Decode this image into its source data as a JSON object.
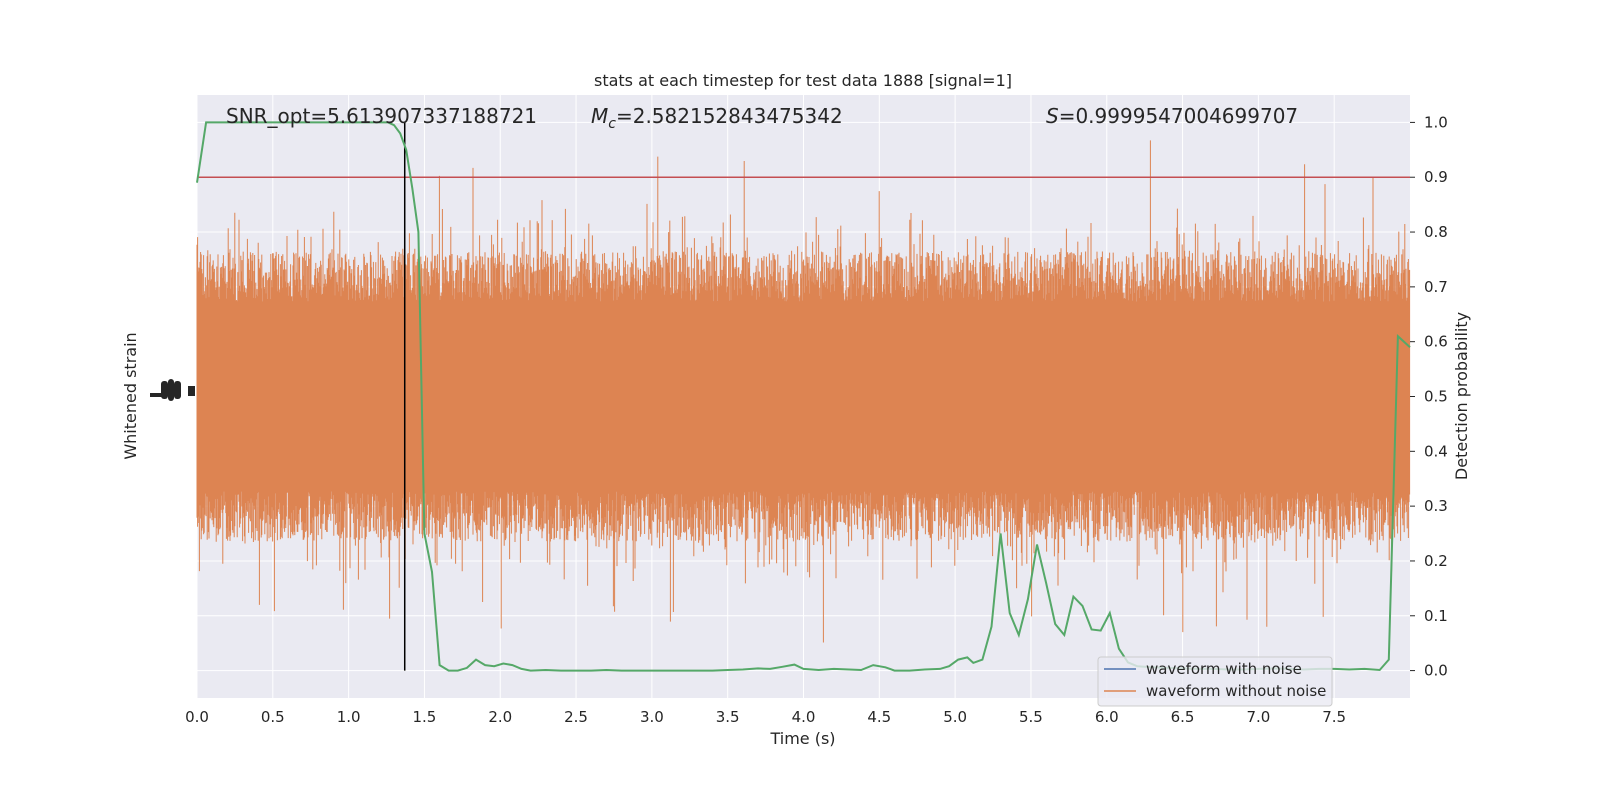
{
  "chart_data": {
    "type": "line",
    "title": "stats at each timestep for test data 1888 [signal=1]",
    "xlabel": "Time (s)",
    "ylabel_left": "Whitened strain",
    "ylabel_right": "Detection probability",
    "xlim": [
      0.0,
      8.0
    ],
    "ylim_right": [
      -0.05,
      1.05
    ],
    "x_ticks": [
      "0.0",
      "0.5",
      "1.0",
      "1.5",
      "2.0",
      "2.5",
      "3.0",
      "3.5",
      "4.0",
      "4.5",
      "5.0",
      "5.5",
      "6.0",
      "6.5",
      "7.0",
      "7.5"
    ],
    "y_ticks_right": [
      "0.0",
      "0.1",
      "0.2",
      "0.3",
      "0.4",
      "0.5",
      "0.6",
      "0.7",
      "0.8",
      "0.9",
      "1.0"
    ],
    "annotations": {
      "snr": "SNR_opt=5.613907337188721",
      "mc_symbol": "M",
      "mc_sub": "c",
      "mc_value": "=2.582152843475342",
      "s_symbol": "S",
      "s_value": "=0.9999547004699707"
    },
    "threshold": 0.9,
    "vline_x": 1.37,
    "legend_position": "lower-right",
    "series": [
      {
        "name": "waveform with noise",
        "color": "#4c72b0"
      },
      {
        "name": "waveform without noise",
        "color": "#dd8452"
      },
      {
        "color": "#55a868",
        "x": [
          0.0,
          0.06,
          0.12,
          0.18,
          0.24,
          0.3,
          0.36,
          0.42,
          0.48,
          0.54,
          0.6,
          0.66,
          0.72,
          0.78,
          0.84,
          0.9,
          0.96,
          1.02,
          1.08,
          1.14,
          1.2,
          1.26,
          1.3,
          1.34,
          1.38,
          1.42,
          1.46,
          1.5,
          1.55,
          1.6,
          1.66,
          1.72,
          1.78,
          1.84,
          1.9,
          1.96,
          2.02,
          2.08,
          2.14,
          2.2,
          2.3,
          2.4,
          2.5,
          2.6,
          2.7,
          2.8,
          2.9,
          3.0,
          3.1,
          3.2,
          3.3,
          3.4,
          3.5,
          3.6,
          3.7,
          3.78,
          3.86,
          3.94,
          4.0,
          4.1,
          4.2,
          4.3,
          4.38,
          4.46,
          4.54,
          4.6,
          4.7,
          4.8,
          4.9,
          4.96,
          5.02,
          5.08,
          5.12,
          5.18,
          5.24,
          5.3,
          5.36,
          5.42,
          5.48,
          5.54,
          5.6,
          5.66,
          5.72,
          5.78,
          5.84,
          5.9,
          5.96,
          6.02,
          6.08,
          6.14,
          6.2,
          6.3,
          6.4,
          6.5,
          6.6,
          6.7,
          6.8,
          6.9,
          7.0,
          7.1,
          7.2,
          7.3,
          7.4,
          7.5,
          7.6,
          7.7,
          7.8,
          7.86,
          7.92,
          8.0
        ],
        "y": [
          0.89,
          1.0,
          1.0,
          1.0,
          1.0,
          1.0,
          1.0,
          1.0,
          1.0,
          1.0,
          1.0,
          1.0,
          1.0,
          1.0,
          1.0,
          1.0,
          1.0,
          1.0,
          1.0,
          1.0,
          1.0,
          1.0,
          0.995,
          0.98,
          0.95,
          0.88,
          0.8,
          0.25,
          0.18,
          0.01,
          0.0,
          0.0,
          0.005,
          0.02,
          0.01,
          0.008,
          0.013,
          0.01,
          0.003,
          0.0,
          0.001,
          0.0,
          0.0,
          0.0,
          0.001,
          0.0,
          0.0,
          0.0,
          0.0,
          0.0,
          0.0,
          0.0,
          0.001,
          0.002,
          0.004,
          0.003,
          0.007,
          0.011,
          0.003,
          0.001,
          0.003,
          0.002,
          0.001,
          0.01,
          0.006,
          0.0,
          0.0,
          0.002,
          0.003,
          0.008,
          0.02,
          0.024,
          0.014,
          0.02,
          0.08,
          0.25,
          0.105,
          0.065,
          0.13,
          0.23,
          0.16,
          0.085,
          0.065,
          0.135,
          0.118,
          0.075,
          0.073,
          0.105,
          0.04,
          0.015,
          0.008,
          0.006,
          0.005,
          0.004,
          0.003,
          0.003,
          0.002,
          0.002,
          0.003,
          0.004,
          0.003,
          0.002,
          0.003,
          0.003,
          0.002,
          0.003,
          0.001,
          0.02,
          0.61,
          0.59
        ]
      },
      {
        "color": "#c44e52"
      }
    ]
  },
  "colors": {
    "plot_bg": "#eaeaf2",
    "grid": "#ffffff",
    "text": "#262626"
  }
}
